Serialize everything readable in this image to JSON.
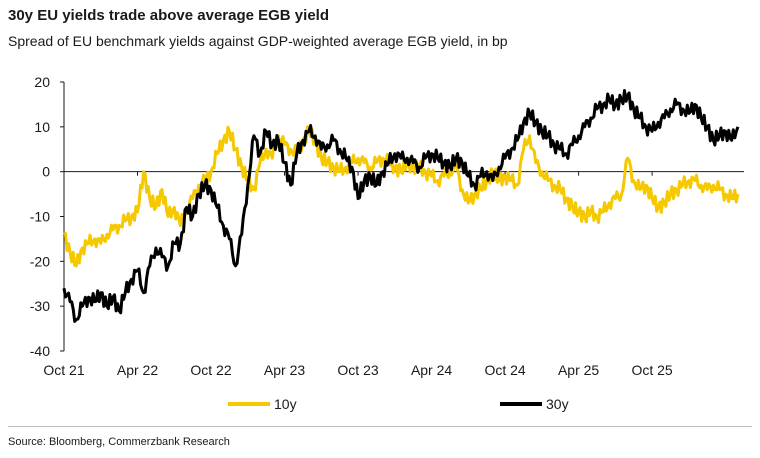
{
  "title": "30y EU yields trade above average EGB yield",
  "subtitle": "Spread of EU benchmark yields against GDP-weighted average EGB yield, in bp",
  "source": "Source: Bloomberg, Commerzbank Research",
  "chart_data": {
    "type": "line",
    "title": "30y EU yields trade above average EGB yield",
    "xlabel": "",
    "ylabel": "",
    "ylim": [
      -40,
      20
    ],
    "yticks": [
      -40,
      -30,
      -20,
      -10,
      0,
      10,
      20
    ],
    "xticks": [
      "Oct 21",
      "Apr 22",
      "Oct 22",
      "Apr 23",
      "Oct 23",
      "Apr 24",
      "Oct 24",
      "Apr 25",
      "Oct 25"
    ],
    "x_range_months": [
      0,
      55.5
    ],
    "grid": false,
    "legend": "bottom",
    "series": [
      {
        "name": "10y",
        "color": "#F5C800",
        "x": [
          0,
          0.5,
          1,
          1.5,
          2,
          2.5,
          3,
          3.5,
          4,
          4.5,
          5,
          5.5,
          6,
          6.5,
          7,
          7.5,
          8,
          8.5,
          9,
          9.5,
          10,
          10.5,
          11,
          11.5,
          12,
          12.5,
          13,
          13.5,
          14,
          14.5,
          15,
          15.5,
          16,
          16.5,
          17,
          17.5,
          18,
          18.5,
          19,
          19.5,
          20,
          20.5,
          21,
          21.5,
          22,
          22.5,
          23,
          23.5,
          24,
          24.5,
          25,
          25.5,
          26,
          26.5,
          27,
          27.5,
          28,
          28.5,
          29,
          29.5,
          30,
          30.5,
          31,
          31.5,
          32,
          32.5,
          33,
          33.5,
          34,
          34.5,
          35,
          35.5,
          36,
          36.5,
          37,
          37.5,
          38,
          38.5,
          39,
          39.5,
          40,
          40.5,
          41,
          41.5,
          42,
          42.5,
          43,
          43.5,
          44,
          44.5,
          45,
          45.5,
          46,
          46.5,
          47,
          47.5,
          48,
          48.5,
          49,
          49.5,
          50,
          50.5,
          51,
          51.5,
          52,
          52.5,
          53,
          53.5,
          54,
          54.5,
          55
        ],
        "values": [
          -14,
          -18,
          -21,
          -17,
          -16,
          -15,
          -16,
          -14,
          -13,
          -12,
          -11,
          -10,
          -9,
          0,
          -6,
          -8,
          -4,
          -10,
          -8,
          -12,
          -8,
          -6,
          -3,
          -2,
          0,
          4,
          7,
          9,
          5,
          1,
          -2,
          -4,
          2,
          5,
          3,
          8,
          6,
          5,
          4,
          7,
          9,
          7,
          3,
          2,
          1,
          0,
          1,
          2,
          3,
          2,
          1,
          2,
          3,
          2,
          1,
          0,
          2,
          1,
          1,
          0,
          -1,
          -2,
          -1,
          0,
          1,
          -4,
          -7,
          -5,
          -4,
          -2,
          0,
          -2,
          -1,
          -2,
          -3,
          5,
          8,
          2,
          0,
          -2,
          -3,
          -4,
          -6,
          -8,
          -9,
          -10,
          -9,
          -10,
          -9,
          -7,
          -6,
          -5,
          3,
          -2,
          -4,
          -3,
          -6,
          -8,
          -7,
          -5,
          -4,
          -3,
          -2,
          -2,
          -3,
          -4,
          -3,
          -4,
          -5,
          -6,
          -5
        ]
      },
      {
        "name": "30y",
        "color": "#000000",
        "x": [
          0,
          0.5,
          1,
          1.5,
          2,
          2.5,
          3,
          3.5,
          4,
          4.5,
          5,
          5.5,
          6,
          6.5,
          7,
          7.5,
          8,
          8.5,
          9,
          9.5,
          10,
          10.5,
          11,
          11.5,
          12,
          12.5,
          13,
          13.5,
          14,
          14.5,
          15,
          15.5,
          16,
          16.5,
          17,
          17.5,
          18,
          18.5,
          19,
          19.5,
          20,
          20.5,
          21,
          21.5,
          22,
          22.5,
          23,
          23.5,
          24,
          24.5,
          25,
          25.5,
          26,
          26.5,
          27,
          27.5,
          28,
          28.5,
          29,
          29.5,
          30,
          30.5,
          31,
          31.5,
          32,
          32.5,
          33,
          33.5,
          34,
          34.5,
          35,
          35.5,
          36,
          36.5,
          37,
          37.5,
          38,
          38.5,
          39,
          39.5,
          40,
          40.5,
          41,
          41.5,
          42,
          42.5,
          43,
          43.5,
          44,
          44.5,
          45,
          45.5,
          46,
          46.5,
          47,
          47.5,
          48,
          48.5,
          49,
          49.5,
          50,
          50.5,
          51,
          51.5,
          52,
          52.5,
          53,
          53.5,
          54,
          54.5,
          55
        ],
        "values": [
          -26,
          -29,
          -33,
          -30,
          -28,
          -29,
          -27,
          -30,
          -28,
          -31,
          -27,
          -24,
          -22,
          -27,
          -21,
          -17,
          -19,
          -21,
          -16,
          -16,
          -8,
          -10,
          -5,
          -3,
          -4,
          -8,
          -12,
          -15,
          -21,
          -14,
          -3,
          8,
          4,
          9,
          6,
          7,
          2,
          -3,
          4,
          7,
          9,
          8,
          5,
          6,
          7,
          5,
          3,
          1,
          -6,
          -2,
          -1,
          -3,
          0,
          2,
          4,
          3,
          3,
          2,
          1,
          3,
          4,
          3,
          2,
          1,
          3,
          2,
          -1,
          -3,
          -1,
          0,
          -2,
          1,
          3,
          5,
          7,
          11,
          13,
          11,
          9,
          8,
          6,
          5,
          4,
          6,
          8,
          10,
          12,
          14,
          15,
          16,
          15,
          16,
          17,
          14,
          12,
          10,
          9,
          11,
          12,
          14,
          15,
          14,
          13,
          15,
          12,
          10,
          7,
          8,
          9,
          7,
          10
        ]
      }
    ]
  }
}
